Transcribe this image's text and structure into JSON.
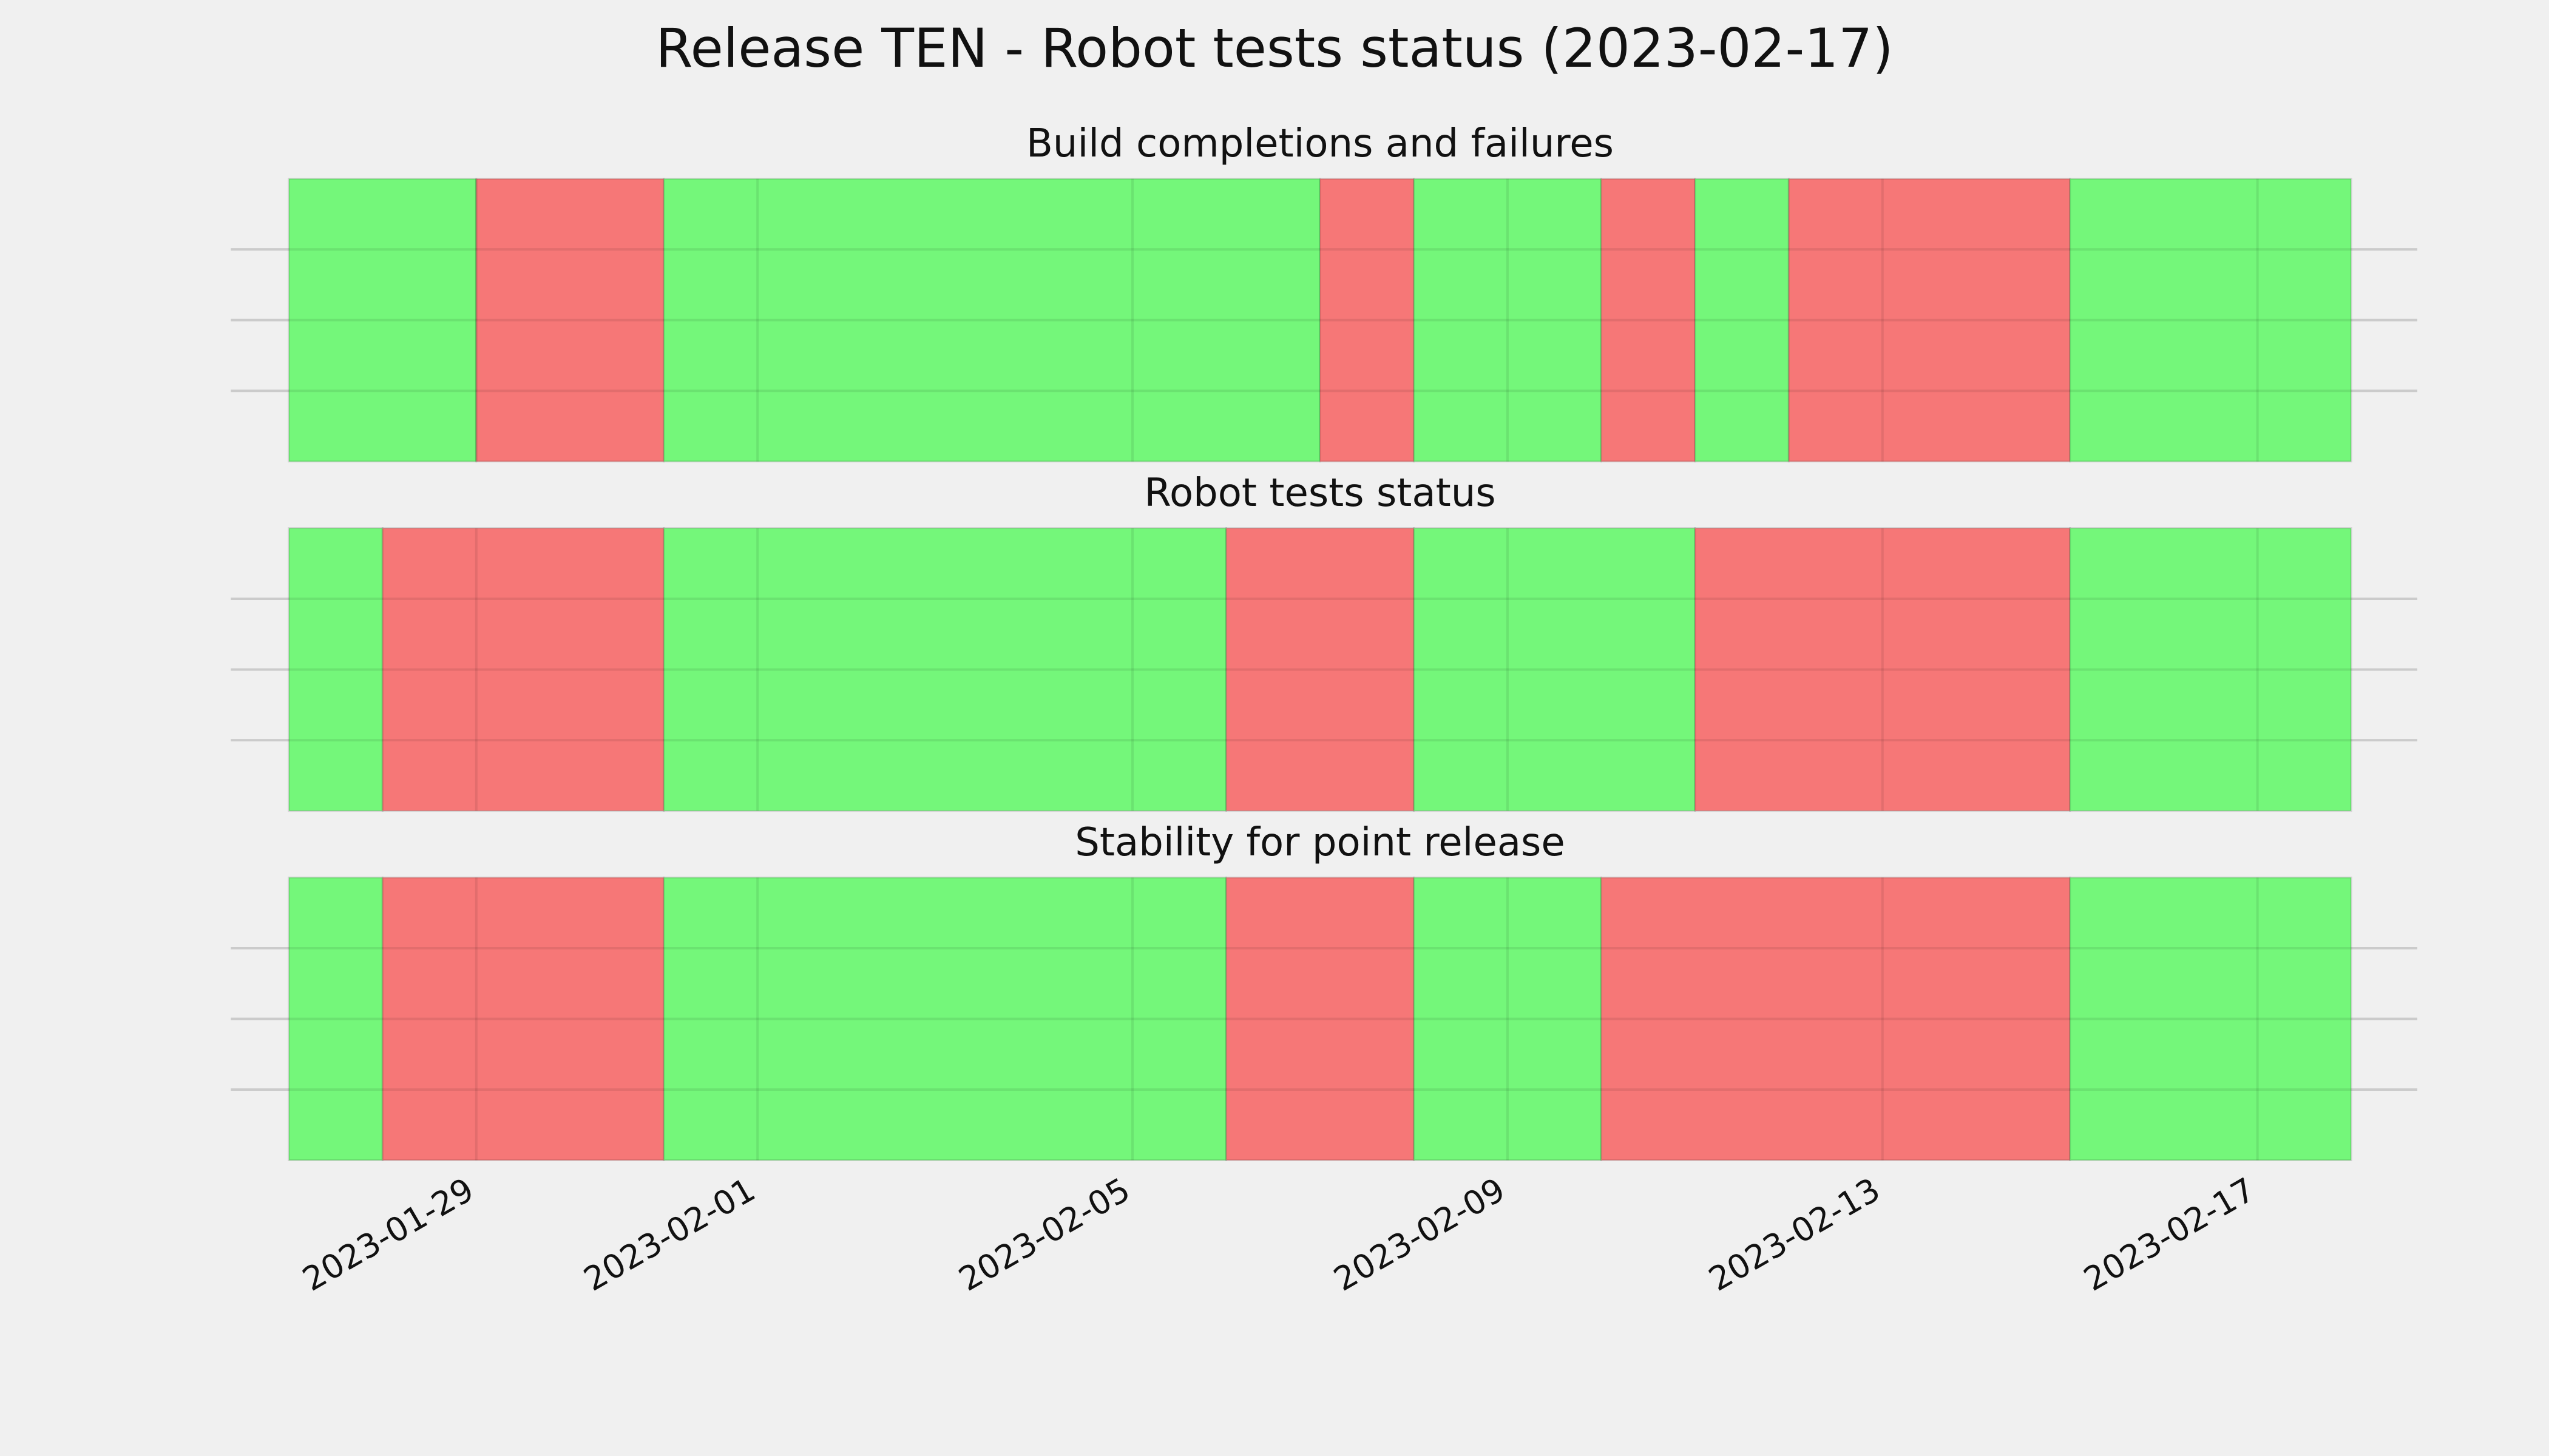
{
  "title": "Release TEN - Robot tests status (2023-02-17)",
  "chart_data": [
    {
      "type": "timeline",
      "title": "Build completions and failures",
      "xlim": [
        "2023-01-26",
        "2023-02-19"
      ],
      "xticks": [
        "2023-01-29",
        "2023-02-01",
        "2023-02-05",
        "2023-02-09",
        "2023-02-13",
        "2023-02-17"
      ],
      "ylim": [
        0,
        1
      ],
      "yticks": [
        0.25,
        0.5,
        0.75
      ],
      "grid": true,
      "segments": [
        {
          "start": "2023-01-27",
          "end": "2023-01-29",
          "color": "#74f77a"
        },
        {
          "start": "2023-01-29",
          "end": "2023-01-31",
          "color": "#f67777"
        },
        {
          "start": "2023-01-31",
          "end": "2023-02-07",
          "color": "#74f77a"
        },
        {
          "start": "2023-02-07",
          "end": "2023-02-08",
          "color": "#f67777"
        },
        {
          "start": "2023-02-08",
          "end": "2023-02-10",
          "color": "#74f77a"
        },
        {
          "start": "2023-02-10",
          "end": "2023-02-11",
          "color": "#f67777"
        },
        {
          "start": "2023-02-11",
          "end": "2023-02-12",
          "color": "#74f77a"
        },
        {
          "start": "2023-02-12",
          "end": "2023-02-15",
          "color": "#f67777"
        },
        {
          "start": "2023-02-15",
          "end": "2023-02-18",
          "color": "#74f77a"
        }
      ]
    },
    {
      "type": "timeline",
      "title": "Robot tests status",
      "xlim": [
        "2023-01-26",
        "2023-02-19"
      ],
      "xticks": [
        "2023-01-29",
        "2023-02-01",
        "2023-02-05",
        "2023-02-09",
        "2023-02-13",
        "2023-02-17"
      ],
      "ylim": [
        0,
        1
      ],
      "yticks": [
        0.25,
        0.5,
        0.75
      ],
      "grid": true,
      "segments": [
        {
          "start": "2023-01-27",
          "end": "2023-01-28",
          "color": "#74f77a"
        },
        {
          "start": "2023-01-28",
          "end": "2023-01-31",
          "color": "#f67777"
        },
        {
          "start": "2023-01-31",
          "end": "2023-02-06",
          "color": "#74f77a"
        },
        {
          "start": "2023-02-06",
          "end": "2023-02-08",
          "color": "#f67777"
        },
        {
          "start": "2023-02-08",
          "end": "2023-02-11",
          "color": "#74f77a"
        },
        {
          "start": "2023-02-11",
          "end": "2023-02-15",
          "color": "#f67777"
        },
        {
          "start": "2023-02-15",
          "end": "2023-02-18",
          "color": "#74f77a"
        }
      ]
    },
    {
      "type": "timeline",
      "title": "Stability for point release",
      "xlim": [
        "2023-01-26",
        "2023-02-19"
      ],
      "xticks": [
        "2023-01-29",
        "2023-02-01",
        "2023-02-05",
        "2023-02-09",
        "2023-02-13",
        "2023-02-17"
      ],
      "ylim": [
        0,
        1
      ],
      "yticks": [
        0.25,
        0.5,
        0.75
      ],
      "grid": true,
      "segments": [
        {
          "start": "2023-01-27",
          "end": "2023-01-28",
          "color": "#74f77a"
        },
        {
          "start": "2023-01-28",
          "end": "2023-01-31",
          "color": "#f67777"
        },
        {
          "start": "2023-01-31",
          "end": "2023-02-06",
          "color": "#74f77a"
        },
        {
          "start": "2023-02-06",
          "end": "2023-02-08",
          "color": "#f67777"
        },
        {
          "start": "2023-02-08",
          "end": "2023-02-10",
          "color": "#74f77a"
        },
        {
          "start": "2023-02-10",
          "end": "2023-02-15",
          "color": "#f67777"
        },
        {
          "start": "2023-02-15",
          "end": "2023-02-18",
          "color": "#74f77a"
        }
      ]
    }
  ]
}
